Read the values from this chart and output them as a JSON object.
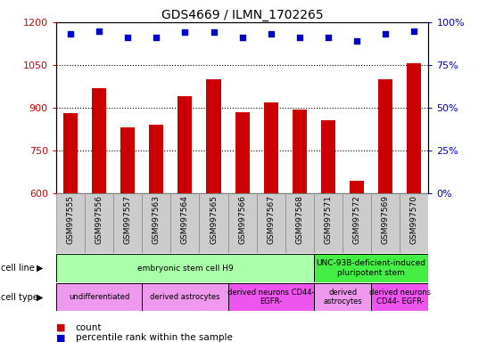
{
  "title": "GDS4669 / ILMN_1702265",
  "samples": [
    "GSM997555",
    "GSM997556",
    "GSM997557",
    "GSM997563",
    "GSM997564",
    "GSM997565",
    "GSM997566",
    "GSM997567",
    "GSM997568",
    "GSM997571",
    "GSM997572",
    "GSM997569",
    "GSM997570"
  ],
  "bar_values": [
    880,
    970,
    830,
    840,
    940,
    1000,
    885,
    920,
    895,
    855,
    645,
    1000,
    1055
  ],
  "percentile_values": [
    93,
    95,
    91,
    91,
    94,
    94,
    91,
    93,
    91,
    91,
    89,
    93,
    95
  ],
  "bar_color": "#cc0000",
  "dot_color": "#0000cc",
  "ylim_left": [
    600,
    1200
  ],
  "ylim_right": [
    0,
    100
  ],
  "yticks_left": [
    600,
    750,
    900,
    1050,
    1200
  ],
  "yticks_right": [
    0,
    25,
    50,
    75,
    100
  ],
  "cell_line_groups": [
    {
      "label": "embryonic stem cell H9",
      "start": 0,
      "end": 9,
      "color": "#aaffaa"
    },
    {
      "label": "UNC-93B-deficient-induced\npluripotent stem",
      "start": 9,
      "end": 13,
      "color": "#44ee44"
    }
  ],
  "cell_type_groups": [
    {
      "label": "undifferentiated",
      "start": 0,
      "end": 3,
      "color": "#ee99ee"
    },
    {
      "label": "derived astrocytes",
      "start": 3,
      "end": 6,
      "color": "#ee99ee"
    },
    {
      "label": "derived neurons CD44-\nEGFR-",
      "start": 6,
      "end": 9,
      "color": "#ee55ee"
    },
    {
      "label": "derived\nastrocytes",
      "start": 9,
      "end": 11,
      "color": "#ee99ee"
    },
    {
      "label": "derived neurons\nCD44- EGFR-",
      "start": 11,
      "end": 13,
      "color": "#ee55ee"
    }
  ],
  "background_color": "#ffffff",
  "tick_color_left": "#cc0000",
  "tick_color_right": "#0000cc",
  "sample_bg_color": "#cccccc",
  "grid_dotted_values": [
    750,
    900,
    1050
  ]
}
